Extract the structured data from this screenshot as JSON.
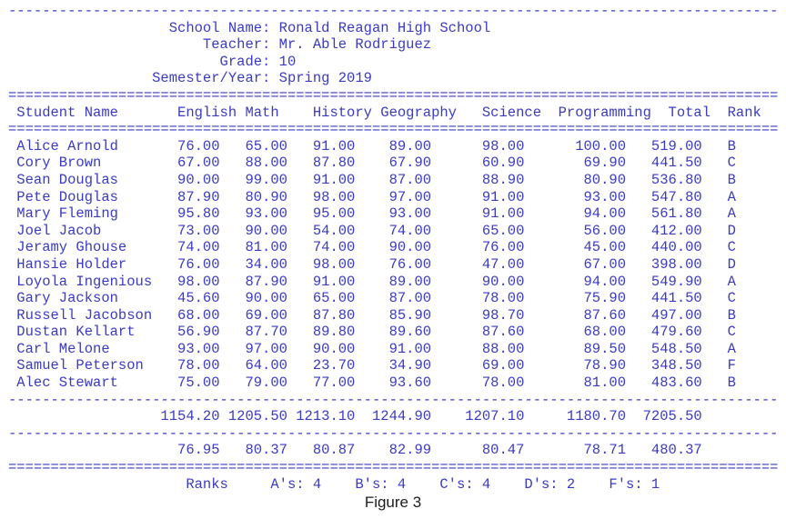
{
  "page": {
    "text_color": "#3a3ac2",
    "caption": "Figure 3"
  },
  "report": {
    "title_fields": [
      {
        "label": "School Name",
        "value": "Ronald Reagan High School"
      },
      {
        "label": "Teacher",
        "value": "Mr. Able Rodriguez"
      },
      {
        "label": "Grade",
        "value": "10"
      },
      {
        "label": "Semester/Year",
        "value": "Spring 2019"
      }
    ],
    "columns": [
      "Student Name",
      "English",
      "Math",
      "History",
      "Geography",
      "Science",
      "Programming",
      "Total",
      "Rank"
    ],
    "students": [
      {
        "name": "Alice Arnold",
        "scores": [
          "76.00",
          "65.00",
          "91.00",
          "89.00",
          "98.00",
          "100.00"
        ],
        "total": "519.00",
        "rank": "B"
      },
      {
        "name": "Cory Brown",
        "scores": [
          "67.00",
          "88.00",
          "87.80",
          "67.90",
          "60.90",
          "69.90"
        ],
        "total": "441.50",
        "rank": "C"
      },
      {
        "name": "Sean Douglas",
        "scores": [
          "90.00",
          "99.00",
          "91.00",
          "87.00",
          "88.90",
          "80.90"
        ],
        "total": "536.80",
        "rank": "B"
      },
      {
        "name": "Pete Douglas",
        "scores": [
          "87.90",
          "80.90",
          "98.00",
          "97.00",
          "91.00",
          "93.00"
        ],
        "total": "547.80",
        "rank": "A"
      },
      {
        "name": "Mary Fleming",
        "scores": [
          "95.80",
          "93.00",
          "95.00",
          "93.00",
          "91.00",
          "94.00"
        ],
        "total": "561.80",
        "rank": "A"
      },
      {
        "name": "Joel Jacob",
        "scores": [
          "73.00",
          "90.00",
          "54.00",
          "74.00",
          "65.00",
          "56.00"
        ],
        "total": "412.00",
        "rank": "D"
      },
      {
        "name": "Jeramy Ghouse",
        "scores": [
          "74.00",
          "81.00",
          "74.00",
          "90.00",
          "76.00",
          "45.00"
        ],
        "total": "440.00",
        "rank": "C"
      },
      {
        "name": "Hansie Holder",
        "scores": [
          "76.00",
          "34.00",
          "98.00",
          "76.00",
          "47.00",
          "67.00"
        ],
        "total": "398.00",
        "rank": "D"
      },
      {
        "name": "Loyola Ingenious",
        "scores": [
          "98.00",
          "87.90",
          "91.00",
          "89.00",
          "90.00",
          "94.00"
        ],
        "total": "549.90",
        "rank": "A"
      },
      {
        "name": "Gary Jackson",
        "scores": [
          "45.60",
          "90.00",
          "65.00",
          "87.00",
          "78.00",
          "75.90"
        ],
        "total": "441.50",
        "rank": "C"
      },
      {
        "name": "Russell Jacobson",
        "scores": [
          "68.00",
          "69.00",
          "87.80",
          "85.90",
          "98.70",
          "87.60"
        ],
        "total": "497.00",
        "rank": "B"
      },
      {
        "name": "Dustan Kellart",
        "scores": [
          "56.90",
          "87.70",
          "89.80",
          "89.60",
          "87.60",
          "68.00"
        ],
        "total": "479.60",
        "rank": "C"
      },
      {
        "name": "Carl Melone",
        "scores": [
          "93.00",
          "97.00",
          "90.00",
          "91.00",
          "88.00",
          "89.50"
        ],
        "total": "548.50",
        "rank": "A"
      },
      {
        "name": "Samuel Peterson",
        "scores": [
          "78.00",
          "64.00",
          "23.70",
          "34.90",
          "69.00",
          "78.90"
        ],
        "total": "348.50",
        "rank": "F"
      },
      {
        "name": "Alec Stewart",
        "scores": [
          "75.00",
          "79.00",
          "77.00",
          "93.60",
          "78.00",
          "81.00"
        ],
        "total": "483.60",
        "rank": "B"
      }
    ],
    "totals": [
      "1154.20",
      "1205.50",
      "1213.10",
      "1244.90",
      "1207.10",
      "1180.70",
      "7205.50"
    ],
    "averages": [
      "76.95",
      "80.37",
      "80.87",
      "82.99",
      "80.47",
      "78.71",
      "480.37"
    ],
    "ranks_summary": {
      "label": "Ranks",
      "counts": [
        {
          "grade": "A's",
          "count": "4"
        },
        {
          "grade": "B's",
          "count": "4"
        },
        {
          "grade": "C's",
          "count": "4"
        },
        {
          "grade": "D's",
          "count": "2"
        },
        {
          "grade": "F's",
          "count": "1"
        }
      ]
    }
  }
}
